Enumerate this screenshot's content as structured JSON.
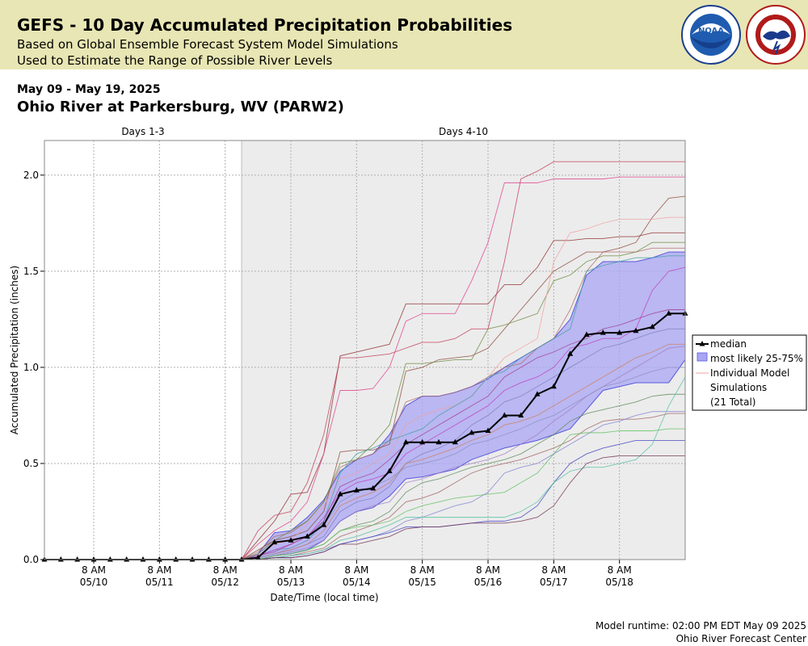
{
  "header": {
    "title": "GEFS - 10 Day Accumulated Precipitation Probabilities",
    "subtitle1": "Based on Global Ensemble Forecast System Model Simulations",
    "subtitle2": "Used to Estimate the Range of Possible River Levels",
    "logos": [
      "noaa-logo",
      "national-weather-service-logo"
    ]
  },
  "date_range": "May 09 - May 19, 2025",
  "station": "Ohio River at Parkersburg, WV (PARW2)",
  "footer": {
    "runtime": "Model runtime: 02:00 PM EDT May 09 2025",
    "center": "Ohio River Forecast Center"
  },
  "colors": {
    "banner": "#e8e6b4",
    "median": "#000000",
    "band_fill": "#a9a6f4",
    "band_edge": "#5a58e0",
    "shaded_region": "#ececec"
  },
  "chart_data": {
    "type": "line",
    "title": "",
    "xlabel": "Date/Time (local time)",
    "ylabel": "Accumulated Precipitation (inches)",
    "region_labels": [
      "Days 1-3",
      "Days 4-10"
    ],
    "region_split": "05/12 14:00",
    "x_ticks": [
      {
        "time": "8 AM",
        "date": "05/10"
      },
      {
        "time": "8 AM",
        "date": "05/11"
      },
      {
        "time": "8 AM",
        "date": "05/12"
      },
      {
        "time": "8 AM",
        "date": "05/13"
      },
      {
        "time": "8 AM",
        "date": "05/14"
      },
      {
        "time": "8 AM",
        "date": "05/15"
      },
      {
        "time": "8 AM",
        "date": "05/16"
      },
      {
        "time": "8 AM",
        "date": "05/17"
      },
      {
        "time": "8 AM",
        "date": "05/18"
      }
    ],
    "y_ticks": [
      "0.0",
      "0.5",
      "1.0",
      "1.5",
      "2.0"
    ],
    "ylim": [
      0,
      2.18
    ],
    "xlim": [
      "05/09 14:00",
      "05/19 08:00"
    ],
    "grid": true,
    "legend": {
      "placement": "right",
      "entries": [
        "median",
        "most likely 25-75%",
        "Individual Model",
        "Simulations",
        "(21 Total)"
      ]
    },
    "x_times": [
      "05/09 14:00",
      "05/09 20:00",
      "05/10 02:00",
      "05/10 08:00",
      "05/10 14:00",
      "05/10 20:00",
      "05/11 02:00",
      "05/11 08:00",
      "05/11 14:00",
      "05/11 20:00",
      "05/12 02:00",
      "05/12 08:00",
      "05/12 14:00",
      "05/12 20:00",
      "05/13 02:00",
      "05/13 08:00",
      "05/13 14:00",
      "05/13 20:00",
      "05/14 02:00",
      "05/14 08:00",
      "05/14 14:00",
      "05/14 20:00",
      "05/15 02:00",
      "05/15 08:00",
      "05/15 14:00",
      "05/15 20:00",
      "05/16 02:00",
      "05/16 08:00",
      "05/16 14:00",
      "05/16 20:00",
      "05/17 02:00",
      "05/17 08:00",
      "05/17 14:00",
      "05/17 20:00",
      "05/18 02:00",
      "05/18 08:00",
      "05/18 14:00",
      "05/18 20:00",
      "05/19 02:00",
      "05/19 08:00"
    ],
    "series": [
      {
        "name": "median",
        "values": [
          0,
          0,
          0,
          0,
          0,
          0,
          0,
          0,
          0,
          0,
          0,
          0,
          0,
          0.01,
          0.09,
          0.1,
          0.12,
          0.18,
          0.34,
          0.36,
          0.37,
          0.46,
          0.61,
          0.61,
          0.61,
          0.61,
          0.66,
          0.67,
          0.75,
          0.75,
          0.86,
          0.9,
          1.07,
          1.17,
          1.18,
          1.18,
          1.19,
          1.21,
          1.28,
          1.28
        ]
      },
      {
        "name": "most likely 25-75%",
        "upper": [
          0,
          0,
          0,
          0,
          0,
          0,
          0,
          0,
          0,
          0,
          0,
          0,
          0,
          0.03,
          0.14,
          0.15,
          0.22,
          0.31,
          0.46,
          0.52,
          0.55,
          0.65,
          0.8,
          0.85,
          0.85,
          0.87,
          0.9,
          0.94,
          1.0,
          1.05,
          1.1,
          1.15,
          1.25,
          1.48,
          1.55,
          1.55,
          1.55,
          1.57,
          1.6,
          1.6
        ],
        "lower": [
          0,
          0,
          0,
          0,
          0,
          0,
          0,
          0,
          0,
          0,
          0,
          0,
          0,
          0,
          0.02,
          0.03,
          0.05,
          0.1,
          0.2,
          0.25,
          0.27,
          0.33,
          0.42,
          0.43,
          0.45,
          0.47,
          0.52,
          0.55,
          0.58,
          0.6,
          0.62,
          0.65,
          0.68,
          0.78,
          0.88,
          0.9,
          0.92,
          0.92,
          0.92,
          1.04
        ]
      }
    ],
    "members": [
      [
        0,
        0,
        0,
        0,
        0,
        0,
        0,
        0,
        0,
        0,
        0,
        0,
        0,
        0.04,
        0.12,
        0.14,
        0.2,
        0.3,
        0.48,
        0.52,
        0.55,
        0.62,
        0.82,
        0.85,
        0.85,
        0.87,
        0.9,
        0.95,
        1.0,
        1.02,
        1.1,
        1.15,
        1.3,
        1.5,
        1.6,
        1.6,
        1.6,
        1.62,
        1.62,
        1.62
      ],
      [
        0,
        0,
        0,
        0,
        0,
        0,
        0,
        0,
        0,
        0,
        0,
        0,
        0,
        0.1,
        0.2,
        0.34,
        0.35,
        0.55,
        1.06,
        1.08,
        1.1,
        1.12,
        1.33,
        1.33,
        1.33,
        1.33,
        1.33,
        1.33,
        1.43,
        1.43,
        1.52,
        1.66,
        1.66,
        1.67,
        1.67,
        1.68,
        1.68,
        1.7,
        1.7,
        1.7
      ],
      [
        0,
        0,
        0,
        0,
        0,
        0,
        0,
        0,
        0,
        0,
        0,
        0,
        0,
        0.15,
        0.23,
        0.25,
        0.4,
        0.65,
        1.05,
        1.05,
        1.06,
        1.07,
        1.1,
        1.13,
        1.13,
        1.15,
        1.2,
        1.2,
        1.55,
        1.98,
        2.02,
        2.07,
        2.07,
        2.07,
        2.07,
        2.07,
        2.07,
        2.07,
        2.07,
        2.07
      ],
      [
        0,
        0,
        0,
        0,
        0,
        0,
        0,
        0,
        0,
        0,
        0,
        0,
        0,
        0.08,
        0.15,
        0.2,
        0.3,
        0.55,
        0.88,
        0.88,
        0.89,
        1.0,
        1.24,
        1.28,
        1.28,
        1.28,
        1.45,
        1.65,
        1.96,
        1.96,
        1.96,
        1.98,
        1.98,
        1.98,
        1.98,
        1.99,
        1.99,
        1.99,
        1.99,
        1.99
      ],
      [
        0,
        0,
        0,
        0,
        0,
        0,
        0,
        0,
        0,
        0,
        0,
        0,
        0,
        0.05,
        0.1,
        0.12,
        0.15,
        0.25,
        0.56,
        0.57,
        0.57,
        0.6,
        0.98,
        1.0,
        1.04,
        1.05,
        1.06,
        1.1,
        1.2,
        1.3,
        1.4,
        1.5,
        1.55,
        1.6,
        1.6,
        1.62,
        1.65,
        1.78,
        1.88,
        1.89
      ],
      [
        0,
        0,
        0,
        0,
        0,
        0,
        0,
        0,
        0,
        0,
        0,
        0,
        0,
        0.03,
        0.1,
        0.15,
        0.2,
        0.3,
        0.5,
        0.52,
        0.6,
        0.7,
        1.02,
        1.02,
        1.03,
        1.04,
        1.04,
        1.2,
        1.22,
        1.25,
        1.28,
        1.45,
        1.48,
        1.55,
        1.58,
        1.58,
        1.6,
        1.65,
        1.65,
        1.65
      ],
      [
        0,
        0,
        0,
        0,
        0,
        0,
        0,
        0,
        0,
        0,
        0,
        0,
        0,
        0.02,
        0.08,
        0.1,
        0.18,
        0.28,
        0.42,
        0.45,
        0.5,
        0.55,
        0.7,
        0.75,
        0.78,
        0.8,
        0.85,
        0.95,
        1.05,
        1.1,
        1.15,
        1.55,
        1.7,
        1.72,
        1.75,
        1.77,
        1.77,
        1.77,
        1.78,
        1.78
      ],
      [
        0,
        0,
        0,
        0,
        0,
        0,
        0,
        0,
        0,
        0,
        0,
        0,
        0,
        0.02,
        0.05,
        0.06,
        0.1,
        0.2,
        0.45,
        0.55,
        0.58,
        0.62,
        0.65,
        0.68,
        0.75,
        0.8,
        0.85,
        0.95,
        0.98,
        1.05,
        1.1,
        1.15,
        1.2,
        1.5,
        1.53,
        1.55,
        1.57,
        1.57,
        1.58,
        1.58
      ],
      [
        0,
        0,
        0,
        0,
        0,
        0,
        0,
        0,
        0,
        0,
        0,
        0,
        0,
        0.02,
        0.05,
        0.08,
        0.12,
        0.22,
        0.35,
        0.4,
        0.42,
        0.45,
        0.55,
        0.6,
        0.65,
        0.7,
        0.75,
        0.8,
        0.88,
        0.92,
        0.95,
        1.0,
        1.1,
        1.12,
        1.15,
        1.15,
        1.2,
        1.4,
        1.5,
        1.52
      ],
      [
        0,
        0,
        0,
        0,
        0,
        0,
        0,
        0,
        0,
        0,
        0,
        0,
        0,
        0.01,
        0.03,
        0.05,
        0.08,
        0.12,
        0.25,
        0.3,
        0.32,
        0.38,
        0.5,
        0.55,
        0.58,
        0.62,
        0.7,
        0.75,
        0.82,
        0.85,
        0.9,
        0.95,
        1.0,
        1.05,
        1.1,
        1.12,
        1.15,
        1.18,
        1.2,
        1.2
      ],
      [
        0,
        0,
        0,
        0,
        0,
        0,
        0,
        0,
        0,
        0,
        0,
        0,
        0,
        0,
        0.02,
        0.04,
        0.06,
        0.1,
        0.2,
        0.25,
        0.28,
        0.3,
        0.4,
        0.42,
        0.45,
        0.48,
        0.5,
        0.52,
        0.55,
        0.6,
        0.65,
        0.72,
        0.78,
        0.85,
        0.9,
        0.95,
        1.0,
        1.05,
        1.1,
        1.11
      ],
      [
        0,
        0,
        0,
        0,
        0,
        0,
        0,
        0,
        0,
        0,
        0,
        0,
        0,
        0,
        0.02,
        0.03,
        0.05,
        0.08,
        0.15,
        0.18,
        0.2,
        0.25,
        0.35,
        0.4,
        0.42,
        0.45,
        0.48,
        0.5,
        0.52,
        0.55,
        0.6,
        0.65,
        0.72,
        0.76,
        0.78,
        0.8,
        0.82,
        0.85,
        0.86,
        0.86
      ],
      [
        0,
        0,
        0,
        0,
        0,
        0,
        0,
        0,
        0,
        0,
        0,
        0,
        0,
        0,
        0.01,
        0.02,
        0.04,
        0.06,
        0.12,
        0.15,
        0.18,
        0.22,
        0.3,
        0.32,
        0.35,
        0.4,
        0.45,
        0.48,
        0.5,
        0.52,
        0.55,
        0.58,
        0.62,
        0.68,
        0.72,
        0.73,
        0.73,
        0.74,
        0.76,
        0.76
      ],
      [
        0,
        0,
        0,
        0,
        0,
        0,
        0,
        0,
        0,
        0,
        0,
        0,
        0,
        0,
        0.01,
        0.02,
        0.03,
        0.05,
        0.08,
        0.1,
        0.12,
        0.15,
        0.2,
        0.22,
        0.25,
        0.28,
        0.3,
        0.35,
        0.45,
        0.48,
        0.5,
        0.55,
        0.6,
        0.65,
        0.7,
        0.72,
        0.75,
        0.77,
        0.77,
        0.77
      ],
      [
        0,
        0,
        0,
        0,
        0,
        0,
        0,
        0,
        0,
        0,
        0,
        0,
        0,
        0,
        0.01,
        0.01,
        0.02,
        0.04,
        0.08,
        0.1,
        0.12,
        0.14,
        0.17,
        0.17,
        0.17,
        0.18,
        0.19,
        0.2,
        0.2,
        0.22,
        0.28,
        0.4,
        0.5,
        0.55,
        0.58,
        0.6,
        0.62,
        0.62,
        0.62,
        0.62
      ],
      [
        0,
        0,
        0,
        0,
        0,
        0,
        0,
        0,
        0,
        0,
        0,
        0,
        0,
        0,
        0.02,
        0.03,
        0.05,
        0.08,
        0.15,
        0.17,
        0.18,
        0.2,
        0.25,
        0.28,
        0.3,
        0.32,
        0.33,
        0.34,
        0.35,
        0.4,
        0.45,
        0.55,
        0.65,
        0.66,
        0.66,
        0.67,
        0.67,
        0.67,
        0.68,
        0.68
      ],
      [
        0,
        0,
        0,
        0,
        0,
        0,
        0,
        0,
        0,
        0,
        0,
        0,
        0,
        0,
        0.01,
        0.02,
        0.03,
        0.05,
        0.1,
        0.12,
        0.15,
        0.18,
        0.22,
        0.22,
        0.22,
        0.22,
        0.22,
        0.22,
        0.22,
        0.25,
        0.3,
        0.4,
        0.46,
        0.48,
        0.48,
        0.5,
        0.52,
        0.6,
        0.8,
        0.95
      ],
      [
        0,
        0,
        0,
        0,
        0,
        0,
        0,
        0,
        0,
        0,
        0,
        0,
        0,
        0,
        0.01,
        0.01,
        0.02,
        0.04,
        0.08,
        0.08,
        0.1,
        0.12,
        0.16,
        0.17,
        0.17,
        0.18,
        0.19,
        0.19,
        0.19,
        0.2,
        0.22,
        0.28,
        0.4,
        0.5,
        0.53,
        0.54,
        0.54,
        0.54,
        0.54,
        0.54
      ],
      [
        0,
        0,
        0,
        0,
        0,
        0,
        0,
        0,
        0,
        0,
        0,
        0,
        0,
        0.01,
        0.03,
        0.05,
        0.08,
        0.15,
        0.28,
        0.32,
        0.35,
        0.4,
        0.5,
        0.52,
        0.55,
        0.58,
        0.62,
        0.65,
        0.7,
        0.72,
        0.75,
        0.8,
        0.85,
        0.9,
        0.95,
        1.0,
        1.05,
        1.08,
        1.12,
        1.12
      ],
      [
        0,
        0,
        0,
        0,
        0,
        0,
        0,
        0,
        0,
        0,
        0,
        0,
        0,
        0.02,
        0.04,
        0.08,
        0.12,
        0.2,
        0.38,
        0.42,
        0.45,
        0.52,
        0.6,
        0.65,
        0.7,
        0.75,
        0.8,
        0.85,
        0.95,
        1.0,
        1.05,
        1.08,
        1.12,
        1.15,
        1.2,
        1.22,
        1.25,
        1.28,
        1.3,
        1.3
      ],
      [
        0,
        0,
        0,
        0,
        0,
        0,
        0,
        0,
        0,
        0,
        0,
        0,
        0,
        0.01,
        0.03,
        0.06,
        0.1,
        0.18,
        0.3,
        0.35,
        0.38,
        0.42,
        0.48,
        0.5,
        0.52,
        0.55,
        0.6,
        0.62,
        0.65,
        0.68,
        0.72,
        0.75,
        0.8,
        0.85,
        0.9,
        0.92,
        0.95,
        0.98,
        1.0,
        1.0
      ]
    ],
    "member_colors": [
      "#b06a6a",
      "#8e2a2a",
      "#c23b5a",
      "#e0408a",
      "#8b4a3a",
      "#6a8a3a",
      "#f0a0a0",
      "#40a0a0",
      "#c040c0",
      "#8080c0",
      "#a080c0",
      "#5a8a5a",
      "#a06060",
      "#8080d0",
      "#4040c0",
      "#60c060",
      "#50c0a0",
      "#703050",
      "#d08060",
      "#a04090",
      "#9090c0"
    ]
  }
}
